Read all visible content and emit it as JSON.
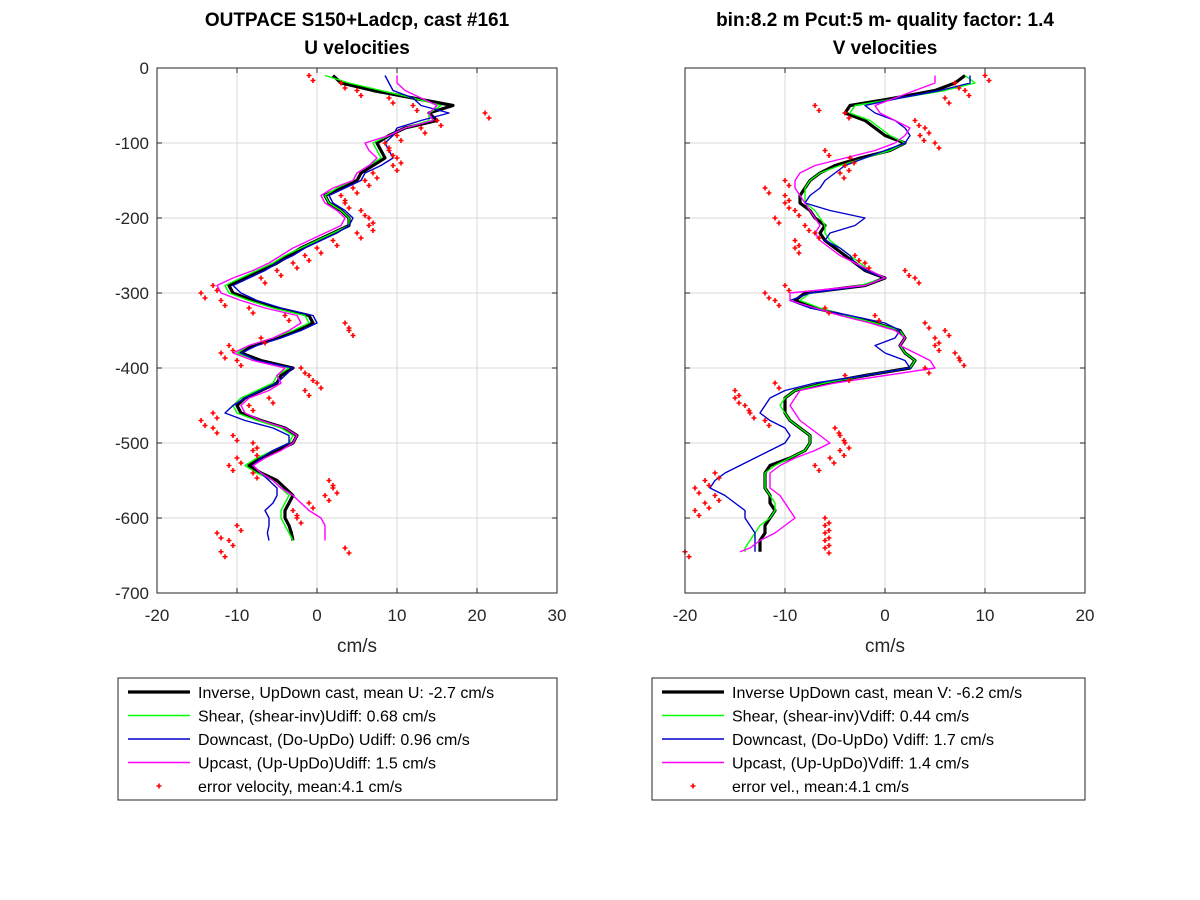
{
  "chart_data": [
    {
      "type": "line",
      "title": "OUTPACE S150+Ladcp, cast #161",
      "subtitle": "U velocities",
      "xlabel": "cm/s",
      "ylabel": "",
      "xlim": [
        -20,
        30
      ],
      "ylim": [
        -700,
        0
      ],
      "xticks": [
        -20,
        -10,
        0,
        10,
        20,
        30
      ],
      "yticks": [
        0,
        -100,
        -200,
        -300,
        -400,
        -500,
        -600,
        -700
      ],
      "grid": true,
      "legend_position": "below",
      "legend": [
        {
          "label": "Inverse, UpDown cast, mean U:  -2.7 cm/s",
          "color": "#000000"
        },
        {
          "label": "Shear, (shear-inv)Udiff:  0.68 cm/s",
          "color": "#00ff00"
        },
        {
          "label": "Downcast, (Do-UpDo) Udiff:  0.96 cm/s",
          "color": "#0000cc"
        },
        {
          "label": "Upcast, (Up-UpDo)Udiff:  1.5 cm/s",
          "color": "#ff00ff"
        },
        {
          "label": "error velocity, mean:4.1 cm/s",
          "color": "#ff0000"
        }
      ],
      "y": [
        -10,
        -20,
        -30,
        -40,
        -50,
        -60,
        -70,
        -80,
        -90,
        -100,
        -110,
        -120,
        -130,
        -140,
        -150,
        -160,
        -170,
        -180,
        -190,
        -200,
        -210,
        -220,
        -230,
        -240,
        -250,
        -260,
        -270,
        -280,
        -290,
        -300,
        -310,
        -320,
        -330,
        -340,
        -350,
        -360,
        -370,
        -380,
        -390,
        -400,
        -410,
        -420,
        -430,
        -440,
        -450,
        -460,
        -470,
        -480,
        -490,
        -500,
        -510,
        -520,
        -530,
        -540,
        -550,
        -560,
        -570,
        -580,
        -590,
        -600,
        -610,
        -620,
        -630,
        -640,
        -645
      ],
      "series": [
        {
          "name": "Inverse",
          "color": "#000000",
          "width": 3.2,
          "x": [
            2,
            3,
            7,
            12,
            17,
            14,
            15,
            11,
            9,
            7.5,
            8,
            8.5,
            7,
            5.5,
            5,
            3,
            1,
            1.5,
            3,
            4,
            4,
            2,
            0,
            -2,
            -3.5,
            -5,
            -7,
            -9,
            -11,
            -10.5,
            -8,
            -5,
            -1,
            -0.5,
            -2.5,
            -5,
            -8,
            -9.5,
            -7,
            -3,
            -4.5,
            -5,
            -7,
            -9,
            -10,
            -9.5,
            -7,
            -4,
            -2.5,
            -3,
            -5,
            -7,
            -8.5,
            -7,
            -5,
            -4,
            -3,
            -3.5,
            -4,
            -4,
            -3.5,
            -3.2,
            -3
          ]
        },
        {
          "name": "Shear",
          "color": "#00ff00",
          "width": 1.4,
          "x": [
            1,
            4,
            8,
            12,
            15.5,
            14,
            14,
            11,
            9,
            7,
            7.5,
            8,
            6.5,
            5,
            4.5,
            2.5,
            1,
            1.5,
            3,
            4,
            4,
            2,
            0,
            -2,
            -4,
            -5.5,
            -7.5,
            -9.5,
            -11.5,
            -11,
            -8.5,
            -5.5,
            -1.5,
            -1,
            -3,
            -5.5,
            -8.5,
            -10,
            -7.5,
            -3.5,
            -5,
            -5.5,
            -7.5,
            -9.5,
            -10.5,
            -10,
            -7.5,
            -4.5,
            -3,
            -3.5,
            -5.5,
            -7.5,
            -9,
            -7.5,
            -5.5,
            -4.5,
            -3.5,
            -4,
            -4.5,
            -4.5,
            -4,
            -3.5,
            -3
          ]
        },
        {
          "name": "Downcast",
          "color": "#0000cc",
          "width": 1.4,
          "x": [
            8.5,
            9,
            9.5,
            12,
            13,
            16.5,
            13,
            10,
            9.5,
            8.5,
            9,
            9.5,
            8,
            6,
            5.5,
            3.5,
            1.5,
            2,
            3.5,
            4.5,
            4,
            2.5,
            0.5,
            -1.5,
            -3,
            -5,
            -6.5,
            -8.5,
            -10.5,
            -9.5,
            -7.5,
            -4.5,
            -0.5,
            0,
            -2,
            -4.5,
            -7.5,
            -9.5,
            -7.5,
            -3,
            -4,
            -5,
            -7,
            -9,
            -10.5,
            -11.5,
            -9,
            -5.5,
            -3.5,
            -3.5,
            -5.5,
            -7,
            -8,
            -7,
            -6,
            -5,
            -5,
            -5.5,
            -6.5,
            -6,
            -6,
            -6.2,
            -6
          ]
        },
        {
          "name": "Upcast",
          "color": "#ff00ff",
          "width": 1.4,
          "x": [
            10,
            10,
            11,
            13,
            15,
            14,
            14.5,
            11,
            9,
            6,
            6.5,
            7.5,
            6.5,
            5,
            4.5,
            2,
            0.5,
            1,
            2.5,
            3.5,
            3,
            1,
            -1,
            -3,
            -4.5,
            -6,
            -8,
            -10.5,
            -12.5,
            -12,
            -9.5,
            -6.5,
            -2.5,
            -2,
            -3.5,
            -5.5,
            -8.5,
            -10.5,
            -8,
            -4,
            -5,
            -4.5,
            -6,
            -8.5,
            -9.5,
            -9,
            -7,
            -4,
            -2.5,
            -3,
            -4.5,
            -6.5,
            -8,
            -7,
            -5.5,
            -4.5,
            -3,
            -2,
            -1,
            0.5,
            1,
            1,
            1
          ]
        },
        {
          "name": "error",
          "color": "#ff0000",
          "marker": "plus",
          "x": [
            -1,
            3,
            5,
            9,
            12,
            21,
            15,
            13,
            10,
            8.5,
            9,
            10,
            9.5,
            7,
            6,
            4.5,
            3,
            3.5,
            5.5,
            6.5,
            6.5,
            5,
            2,
            0,
            -1.5,
            -3,
            -5,
            -7,
            -13,
            -14.5,
            -12,
            -8.5,
            -4,
            3.5,
            4,
            -7,
            -11,
            -12,
            -10,
            -2,
            -1,
            0,
            -1.5,
            -6,
            -8.5,
            -13,
            -14.5,
            -13,
            -10.5,
            -8,
            -8,
            -10,
            -11,
            -8,
            1.5,
            2,
            1,
            -1,
            -3,
            -2.5,
            -10,
            -12.5,
            -11,
            3.5,
            -12
          ]
        }
      ]
    },
    {
      "type": "line",
      "title": "bin:8.2 m  Pcut:5 m- quality factor:  1.4",
      "subtitle": "V velocities",
      "xlabel": "cm/s",
      "ylabel": "",
      "xlim": [
        -20,
        20
      ],
      "ylim": [
        -700,
        0
      ],
      "xticks": [
        -20,
        -10,
        0,
        10,
        20
      ],
      "yticks": [
        0,
        -100,
        -200,
        -300,
        -400,
        -500,
        -600,
        -700
      ],
      "grid": true,
      "legend_position": "below",
      "legend": [
        {
          "label": "Inverse UpDown cast, mean V:  -6.2 cm/s",
          "color": "#000000"
        },
        {
          "label": "Shear, (shear-inv)Vdiff:  0.44 cm/s",
          "color": "#00ff00"
        },
        {
          "label": "Downcast, (Do-UpDo) Vdiff:  1.7 cm/s",
          "color": "#0000cc"
        },
        {
          "label": "Upcast, (Up-UpDo)Vdiff:  1.4 cm/s",
          "color": "#ff00ff"
        },
        {
          "label": "error vel., mean:4.1 cm/s",
          "color": "#ff0000"
        }
      ],
      "y": [
        -10,
        -20,
        -30,
        -40,
        -50,
        -60,
        -70,
        -80,
        -90,
        -100,
        -110,
        -120,
        -130,
        -140,
        -150,
        -160,
        -170,
        -180,
        -190,
        -200,
        -210,
        -220,
        -230,
        -240,
        -250,
        -260,
        -270,
        -280,
        -290,
        -300,
        -310,
        -320,
        -330,
        -340,
        -350,
        -360,
        -370,
        -380,
        -390,
        -400,
        -410,
        -420,
        -430,
        -440,
        -450,
        -460,
        -470,
        -480,
        -490,
        -500,
        -510,
        -520,
        -530,
        -540,
        -550,
        -560,
        -570,
        -580,
        -590,
        -600,
        -610,
        -620,
        -630,
        -640,
        -645
      ],
      "series": [
        {
          "name": "Inverse",
          "color": "#000000",
          "width": 3.2,
          "x": [
            8,
            7,
            5,
            1,
            -3.5,
            -4,
            -2,
            -1,
            0,
            2,
            0.5,
            -2.5,
            -5,
            -6.5,
            -7.5,
            -8,
            -8.5,
            -8.5,
            -7.5,
            -7,
            -6,
            -6.5,
            -6,
            -5,
            -4,
            -3,
            -2,
            0,
            -2,
            -8,
            -9,
            -7,
            -4,
            -1,
            1.5,
            2,
            1.5,
            2,
            3,
            2.5,
            -2,
            -6,
            -9,
            -10,
            -10,
            -10,
            -9.5,
            -8.5,
            -7.5,
            -7.5,
            -8,
            -9.5,
            -11.5,
            -12,
            -12,
            -12,
            -11.5,
            -11.5,
            -11,
            -11.5,
            -12,
            -12,
            -12.5,
            -12.5,
            -12.5
          ]
        },
        {
          "name": "Shear",
          "color": "#00ff00",
          "width": 1.4,
          "x": [
            8,
            9,
            6,
            1.5,
            -3,
            -3.5,
            -1.5,
            -0.5,
            0.5,
            2,
            0.5,
            -2,
            -4.5,
            -6.5,
            -7.5,
            -8,
            -8,
            -8,
            -7,
            -6.5,
            -6,
            -6,
            -5.5,
            -4.5,
            -3.5,
            -2.5,
            -1.5,
            0,
            -2.5,
            -7.5,
            -8.5,
            -6.5,
            -4,
            -1,
            1.5,
            2,
            1.5,
            2,
            3,
            2.5,
            -2,
            -6,
            -9,
            -10,
            -10.5,
            -10,
            -9.5,
            -8.5,
            -7.5,
            -7.5,
            -8,
            -9.5,
            -11,
            -12,
            -12,
            -12,
            -11.5,
            -11,
            -11,
            -11.5,
            -12.5,
            -13,
            -13.5,
            -14,
            -14
          ]
        },
        {
          "name": "Downcast",
          "color": "#0000cc",
          "width": 1.4,
          "x": [
            8.5,
            8.5,
            5.5,
            1.5,
            -2,
            -1,
            1,
            2,
            2.5,
            2,
            0,
            -2,
            -4,
            -5,
            -6,
            -6.5,
            -7.5,
            -8,
            -5.5,
            -2,
            -3,
            -5.5,
            -6,
            -4.5,
            -3.5,
            -3,
            -2,
            0,
            -2,
            -7.5,
            -9.5,
            -7.5,
            -3.5,
            0,
            1.5,
            1,
            -1,
            0,
            2,
            2.5,
            -2,
            -7,
            -10,
            -11.5,
            -12,
            -12.5,
            -11.5,
            -10,
            -9.5,
            -10,
            -11.5,
            -13,
            -14.5,
            -16,
            -17,
            -17.5,
            -16,
            -15,
            -14,
            -14,
            -13.5,
            -13,
            -13,
            -13,
            -13
          ]
        },
        {
          "name": "Upcast",
          "color": "#ff00ff",
          "width": 1.4,
          "x": [
            5,
            5,
            3,
            1,
            -1,
            -0.5,
            1,
            2.5,
            2,
            1,
            -1,
            -4,
            -7,
            -8.5,
            -9,
            -9,
            -8.5,
            -8,
            -7.5,
            -7,
            -6.5,
            -7,
            -6.5,
            -5.5,
            -4.5,
            -3,
            -1.5,
            0,
            -2,
            -9.5,
            -9.5,
            -7,
            -4.5,
            -1.5,
            1,
            2,
            1.5,
            3,
            4.5,
            5,
            0,
            -5,
            -8.5,
            -9,
            -9.5,
            -9,
            -8.5,
            -7.5,
            -6.5,
            -5.5,
            -7,
            -9,
            -10.5,
            -11.5,
            -11.5,
            -11.5,
            -10.5,
            -10,
            -9.5,
            -9,
            -10,
            -11,
            -12.5,
            -13.5,
            -14.5
          ]
        },
        {
          "name": "error",
          "color": "#ff0000",
          "marker": "plus",
          "x": [
            10,
            7,
            8,
            6,
            -7,
            -4,
            3,
            4,
            3.5,
            5,
            -6,
            -3.5,
            -4,
            -4.5,
            -10,
            -12,
            -10,
            -10,
            -9,
            -11,
            -8,
            -7,
            -9,
            -9,
            -3,
            -2,
            2,
            3,
            -10,
            -12,
            -11,
            -6,
            -1,
            4,
            6,
            5,
            5,
            7,
            7.5,
            4,
            -4,
            -11,
            -15,
            -15,
            -14,
            -13.5,
            -12,
            -5,
            -4.5,
            -4,
            -4.5,
            -5.5,
            -7,
            -17,
            -18,
            -19,
            -17,
            -18,
            -19,
            -6,
            -6,
            -6,
            -6,
            -6,
            -20
          ]
        }
      ]
    }
  ]
}
